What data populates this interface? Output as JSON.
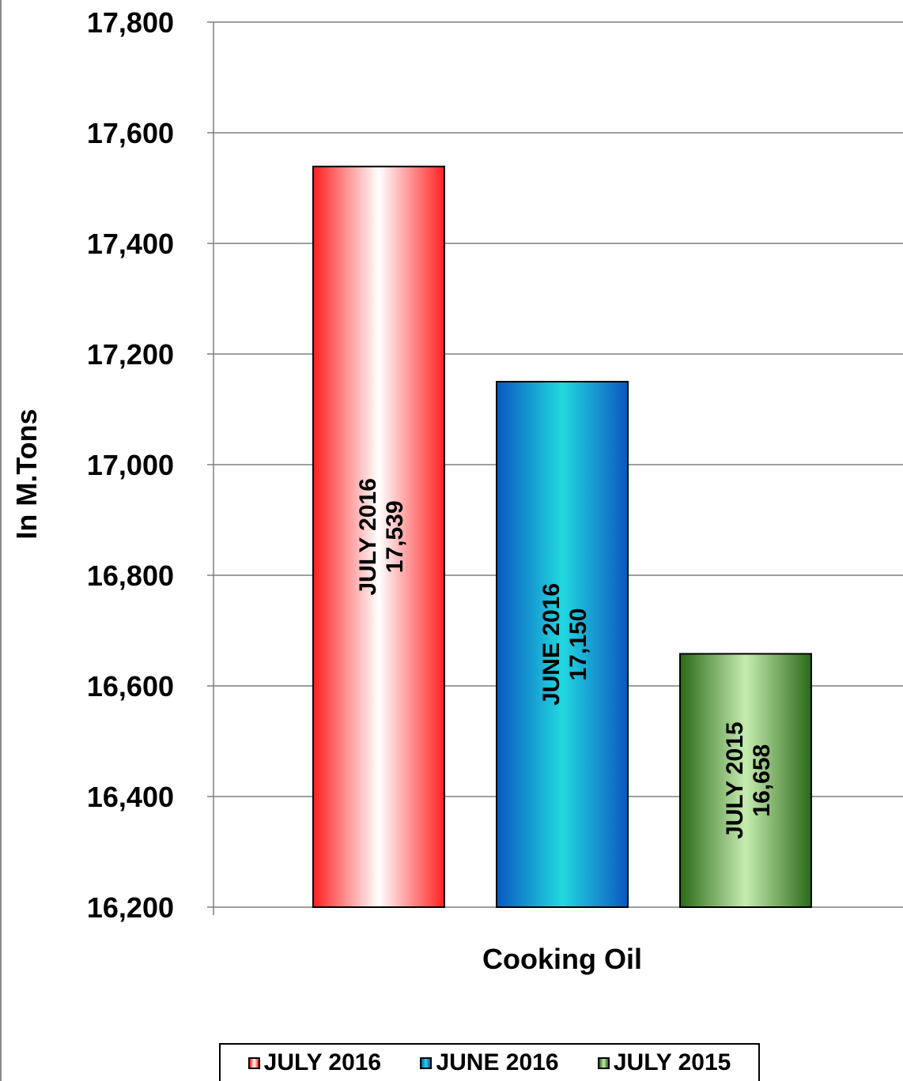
{
  "chart_data": {
    "type": "bar",
    "categories": [
      "Cooking Oil"
    ],
    "series": [
      {
        "name": "JULY 2016",
        "values": [
          17539
        ],
        "value_label": "17,539",
        "color": "#ff2a2a"
      },
      {
        "name": "JUNE 2016",
        "values": [
          17150
        ],
        "value_label": "17,150",
        "color": "#0a64c8"
      },
      {
        "name": "JULY 2015",
        "values": [
          16658
        ],
        "value_label": "16,658",
        "color": "#2e6e1e"
      }
    ],
    "title": "",
    "xlabel": "Cooking Oil",
    "ylabel": "In M.Tons",
    "ylim": [
      16200,
      17800
    ],
    "yticks": [
      16200,
      16400,
      16600,
      16800,
      17000,
      17200,
      17400,
      17600,
      17800
    ],
    "ytick_labels": [
      "16,200",
      "16,400",
      "16,600",
      "16,800",
      "17,000",
      "17,200",
      "17,400",
      "17,600",
      "17,800"
    ],
    "grid": true,
    "legend": "bottom"
  }
}
